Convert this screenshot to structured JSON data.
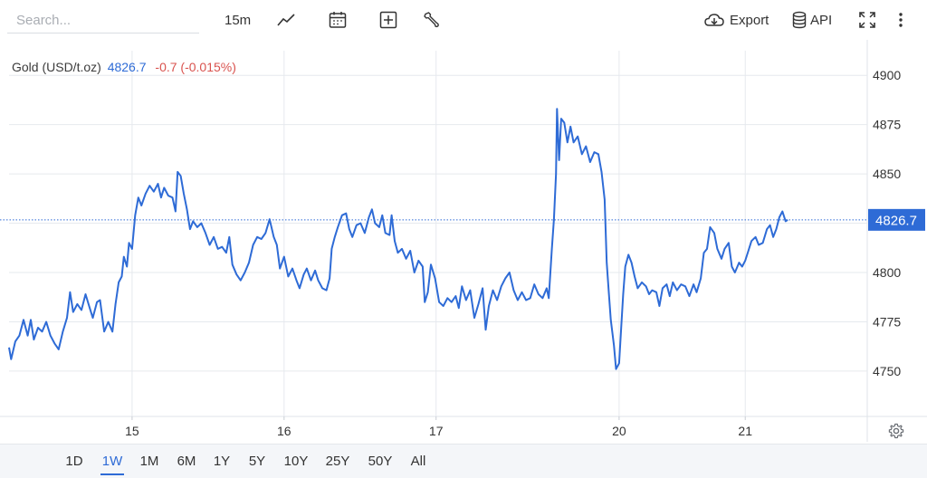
{
  "toolbar": {
    "search_placeholder": "Search...",
    "interval": "15m",
    "export_label": "Export",
    "api_label": "API",
    "icons": [
      "line-chart-icon",
      "calendar-icon",
      "add-box-icon",
      "wrench-icon",
      "cloud-download-icon",
      "database-icon",
      "fullscreen-icon",
      "more-vertical-icon"
    ]
  },
  "legend": {
    "name": "Gold (USD/t.oz)",
    "price": "4826.7",
    "change": "-0.7 (-0.015%)"
  },
  "colors": {
    "line": "#2e6bd6",
    "change_negative": "#d9534f",
    "price_badge": "#2e6bd6",
    "grid": "#e6e9ee"
  },
  "range_buttons": [
    "1D",
    "1W",
    "1M",
    "6M",
    "1Y",
    "5Y",
    "10Y",
    "25Y",
    "50Y",
    "All"
  ],
  "active_range": "1W",
  "chart_data": {
    "type": "line",
    "x_tick_labels": [
      "15",
      "16",
      "17",
      "20",
      "21"
    ],
    "x_tick_positions": [
      3.45,
      10.8,
      18.15,
      27.0,
      33.1
    ],
    "x_range": [
      -2.5,
      39.0
    ],
    "yticks": [
      4750,
      4775,
      4800,
      4825,
      4850,
      4875,
      4900
    ],
    "ylim": [
      4727,
      4918
    ],
    "current_price": 4826.7,
    "current_price_label": "4826.7",
    "grid": true,
    "series": [
      {
        "values": [
          [
            -2.5,
            4762
          ],
          [
            -2.4,
            4756
          ],
          [
            -2.2,
            4765
          ],
          [
            -2.0,
            4768
          ],
          [
            -1.8,
            4776
          ],
          [
            -1.6,
            4768
          ],
          [
            -1.45,
            4776
          ],
          [
            -1.3,
            4766
          ],
          [
            -1.1,
            4772
          ],
          [
            -0.9,
            4770
          ],
          [
            -0.7,
            4775
          ],
          [
            -0.5,
            4768
          ],
          [
            -0.3,
            4764
          ],
          [
            -0.1,
            4761
          ],
          [
            0.1,
            4770
          ],
          [
            0.3,
            4777
          ],
          [
            0.45,
            4790
          ],
          [
            0.6,
            4780
          ],
          [
            0.8,
            4784
          ],
          [
            1.0,
            4781
          ],
          [
            1.2,
            4789
          ],
          [
            1.4,
            4782
          ],
          [
            1.55,
            4777
          ],
          [
            1.75,
            4785
          ],
          [
            1.9,
            4786
          ],
          [
            2.1,
            4770
          ],
          [
            2.3,
            4775
          ],
          [
            2.5,
            4770
          ],
          [
            2.65,
            4784
          ],
          [
            2.8,
            4795
          ],
          [
            2.95,
            4798
          ],
          [
            3.05,
            4808
          ],
          [
            3.2,
            4803
          ],
          [
            3.3,
            4815
          ],
          [
            3.45,
            4812
          ],
          [
            3.6,
            4829
          ],
          [
            3.75,
            4838
          ],
          [
            3.9,
            4834
          ],
          [
            4.1,
            4840
          ],
          [
            4.3,
            4844
          ],
          [
            4.5,
            4841
          ],
          [
            4.7,
            4845
          ],
          [
            4.85,
            4838
          ],
          [
            5.0,
            4843
          ],
          [
            5.2,
            4839
          ],
          [
            5.4,
            4838
          ],
          [
            5.55,
            4831
          ],
          [
            5.65,
            4851
          ],
          [
            5.8,
            4849
          ],
          [
            5.95,
            4840
          ],
          [
            6.1,
            4832
          ],
          [
            6.25,
            4822
          ],
          [
            6.4,
            4826
          ],
          [
            6.6,
            4823
          ],
          [
            6.8,
            4825
          ],
          [
            7.0,
            4820
          ],
          [
            7.2,
            4814
          ],
          [
            7.4,
            4818
          ],
          [
            7.6,
            4812
          ],
          [
            7.8,
            4813
          ],
          [
            8.0,
            4810
          ],
          [
            8.15,
            4818
          ],
          [
            8.3,
            4804
          ],
          [
            8.5,
            4799
          ],
          [
            8.7,
            4796
          ],
          [
            8.9,
            4800
          ],
          [
            9.1,
            4805
          ],
          [
            9.3,
            4814
          ],
          [
            9.5,
            4818
          ],
          [
            9.7,
            4817
          ],
          [
            9.9,
            4820
          ],
          [
            10.1,
            4827
          ],
          [
            10.3,
            4818
          ],
          [
            10.45,
            4814
          ],
          [
            10.6,
            4802
          ],
          [
            10.8,
            4808
          ],
          [
            11.0,
            4798
          ],
          [
            11.2,
            4802
          ],
          [
            11.4,
            4796
          ],
          [
            11.55,
            4792
          ],
          [
            11.75,
            4799
          ],
          [
            11.9,
            4802
          ],
          [
            12.1,
            4796
          ],
          [
            12.3,
            4801
          ],
          [
            12.45,
            4796
          ],
          [
            12.65,
            4792
          ],
          [
            12.85,
            4791
          ],
          [
            13.0,
            4797
          ],
          [
            13.1,
            4812
          ],
          [
            13.25,
            4818
          ],
          [
            13.4,
            4823
          ],
          [
            13.6,
            4829
          ],
          [
            13.8,
            4830
          ],
          [
            13.95,
            4822
          ],
          [
            14.1,
            4818
          ],
          [
            14.3,
            4824
          ],
          [
            14.5,
            4825
          ],
          [
            14.7,
            4820
          ],
          [
            14.9,
            4828
          ],
          [
            15.05,
            4832
          ],
          [
            15.2,
            4825
          ],
          [
            15.4,
            4823
          ],
          [
            15.55,
            4829
          ],
          [
            15.7,
            4820
          ],
          [
            15.9,
            4819
          ],
          [
            16.0,
            4829
          ],
          [
            16.15,
            4816
          ],
          [
            16.3,
            4810
          ],
          [
            16.5,
            4812
          ],
          [
            16.7,
            4807
          ],
          [
            16.9,
            4811
          ],
          [
            17.1,
            4800
          ],
          [
            17.3,
            4806
          ],
          [
            17.5,
            4803
          ],
          [
            17.6,
            4785
          ],
          [
            17.75,
            4790
          ],
          [
            17.9,
            4804
          ],
          [
            18.1,
            4797
          ],
          [
            18.3,
            4785
          ],
          [
            18.5,
            4783
          ],
          [
            18.7,
            4787
          ],
          [
            18.9,
            4785
          ],
          [
            19.1,
            4788
          ],
          [
            19.25,
            4782
          ],
          [
            19.4,
            4793
          ],
          [
            19.6,
            4786
          ],
          [
            19.8,
            4791
          ],
          [
            20.0,
            4777
          ],
          [
            20.2,
            4784
          ],
          [
            20.4,
            4792
          ],
          [
            20.55,
            4771
          ],
          [
            20.7,
            4783
          ],
          [
            20.9,
            4791
          ],
          [
            21.1,
            4786
          ],
          [
            21.3,
            4793
          ],
          [
            21.5,
            4797
          ],
          [
            21.7,
            4800
          ],
          [
            21.9,
            4791
          ],
          [
            22.1,
            4786
          ],
          [
            22.3,
            4790
          ],
          [
            22.5,
            4786
          ],
          [
            22.7,
            4787
          ],
          [
            22.9,
            4794
          ],
          [
            23.1,
            4789
          ],
          [
            23.3,
            4787
          ],
          [
            23.5,
            4792
          ],
          [
            23.6,
            4787
          ],
          [
            23.75,
            4812
          ],
          [
            23.85,
            4827
          ],
          [
            23.95,
            4850
          ],
          [
            24.0,
            4883
          ],
          [
            24.1,
            4857
          ],
          [
            24.2,
            4878
          ],
          [
            24.35,
            4876
          ],
          [
            24.5,
            4866
          ],
          [
            24.65,
            4874
          ],
          [
            24.8,
            4866
          ],
          [
            25.0,
            4869
          ],
          [
            25.2,
            4860
          ],
          [
            25.4,
            4864
          ],
          [
            25.6,
            4856
          ],
          [
            25.8,
            4861
          ],
          [
            26.0,
            4860
          ],
          [
            26.15,
            4851
          ],
          [
            26.3,
            4837
          ],
          [
            26.4,
            4805
          ],
          [
            26.5,
            4790
          ],
          [
            26.6,
            4776
          ],
          [
            26.75,
            4763
          ],
          [
            26.85,
            4751
          ],
          [
            27.0,
            4754
          ],
          [
            27.1,
            4772
          ],
          [
            27.2,
            4789
          ],
          [
            27.3,
            4803
          ],
          [
            27.45,
            4809
          ],
          [
            27.6,
            4805
          ],
          [
            27.75,
            4798
          ],
          [
            27.9,
            4792
          ],
          [
            28.1,
            4795
          ],
          [
            28.3,
            4793
          ],
          [
            28.45,
            4789
          ],
          [
            28.6,
            4791
          ],
          [
            28.8,
            4790
          ],
          [
            28.95,
            4783
          ],
          [
            29.1,
            4792
          ],
          [
            29.3,
            4794
          ],
          [
            29.45,
            4788
          ],
          [
            29.6,
            4795
          ],
          [
            29.8,
            4791
          ],
          [
            30.0,
            4794
          ],
          [
            30.2,
            4793
          ],
          [
            30.4,
            4788
          ],
          [
            30.6,
            4794
          ],
          [
            30.75,
            4790
          ],
          [
            30.95,
            4797
          ],
          [
            31.1,
            4810
          ],
          [
            31.25,
            4812
          ],
          [
            31.4,
            4823
          ],
          [
            31.6,
            4820
          ],
          [
            31.75,
            4812
          ],
          [
            31.95,
            4807
          ],
          [
            32.1,
            4812
          ],
          [
            32.3,
            4815
          ],
          [
            32.45,
            4803
          ],
          [
            32.6,
            4800
          ],
          [
            32.8,
            4805
          ],
          [
            32.95,
            4803
          ],
          [
            33.1,
            4806
          ],
          [
            33.25,
            4811
          ],
          [
            33.4,
            4816
          ],
          [
            33.6,
            4818
          ],
          [
            33.75,
            4814
          ],
          [
            33.95,
            4815
          ],
          [
            34.15,
            4822
          ],
          [
            34.3,
            4824
          ],
          [
            34.45,
            4818
          ],
          [
            34.6,
            4822
          ],
          [
            34.75,
            4828
          ],
          [
            34.9,
            4831
          ],
          [
            35.05,
            4826
          ],
          [
            35.15,
            4826.7
          ]
        ]
      }
    ]
  }
}
